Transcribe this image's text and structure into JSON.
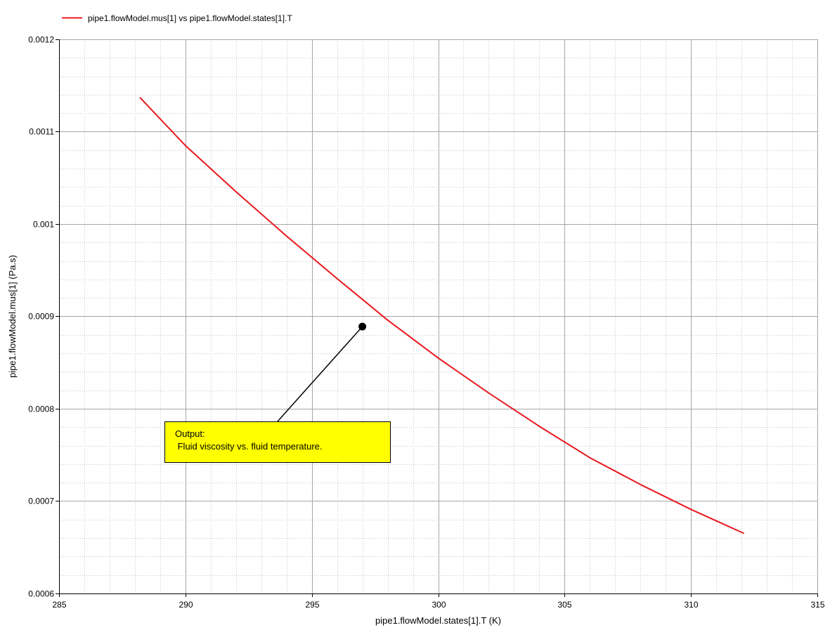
{
  "chart_data": {
    "type": "line",
    "legend": {
      "label": "pipe1.flowModel.mus[1] vs pipe1.flowModel.states[1].T",
      "placement": "top-left"
    },
    "xlabel": "pipe1.flowModel.states[1].T (K)",
    "ylabel": "pipe1.flowModel.mus[1] (Pa.s)",
    "xlim": [
      285,
      315
    ],
    "ylim": [
      0.0006,
      0.0012
    ],
    "xticks": [
      285,
      290,
      295,
      300,
      305,
      310,
      315
    ],
    "yticks": [
      0.0006,
      0.0007,
      0.0008,
      0.0009,
      0.001,
      0.0011,
      0.0012
    ],
    "xtick_labels": [
      "285",
      "290",
      "295",
      "300",
      "305",
      "310",
      "315"
    ],
    "ytick_labels": [
      "0.0006",
      "0.0007",
      "0.0008",
      "0.0009",
      "0.001",
      "0.0011",
      "0.0012"
    ],
    "grid": true,
    "series": [
      {
        "name": "pipe1.flowModel.mus[1] vs pipe1.flowModel.states[1].T",
        "color": "#e8181e",
        "x": [
          288.2,
          290,
          292,
          294,
          296,
          298,
          300,
          302,
          304,
          306,
          308,
          310,
          312.1
        ],
        "y": [
          0.001137,
          0.001085,
          0.001035,
          0.000987,
          0.000941,
          0.000896,
          0.000855,
          0.000817,
          0.000781,
          0.000747,
          0.000718,
          0.000691,
          0.000665
        ]
      }
    ],
    "annotation": {
      "lines": [
        "Output:",
        " Fluid viscosity vs. fluid temperature."
      ],
      "point": {
        "x": 297,
        "y": 0.000889
      },
      "background": "#ffff00"
    }
  }
}
